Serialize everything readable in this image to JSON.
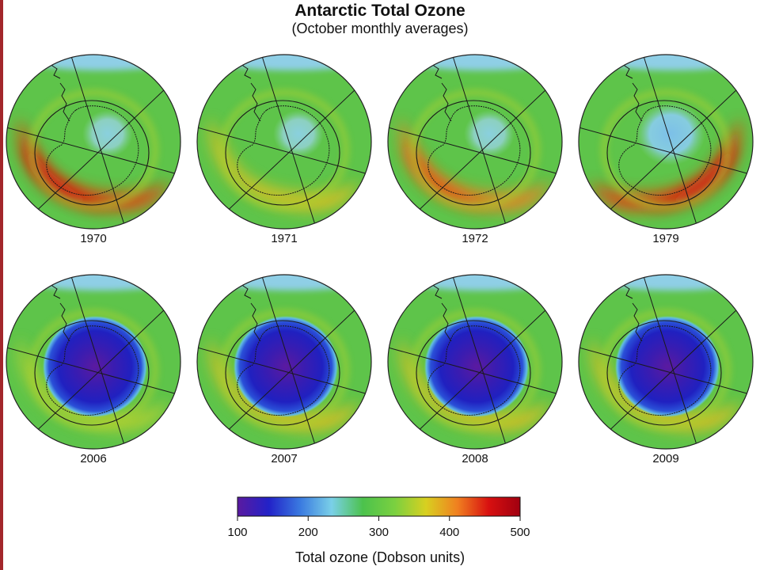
{
  "title": "Antarctic Total Ozone",
  "subtitle": "(October monthly averages)",
  "colors": {
    "frame_edge": "#a3262b",
    "ocean": "#8fcfe6",
    "background": "#ffffff"
  },
  "maps": [
    {
      "year": "1970",
      "hole_level": "none",
      "peak_ring_level": "high"
    },
    {
      "year": "1971",
      "hole_level": "none",
      "peak_ring_level": "moderate"
    },
    {
      "year": "1972",
      "hole_level": "none",
      "peak_ring_level": "moderate-high"
    },
    {
      "year": "1979",
      "hole_level": "slight",
      "peak_ring_level": "high"
    },
    {
      "year": "2006",
      "hole_level": "severe",
      "peak_ring_level": "low"
    },
    {
      "year": "2007",
      "hole_level": "severe",
      "peak_ring_level": "moderate"
    },
    {
      "year": "2008",
      "hole_level": "severe",
      "peak_ring_level": "moderate"
    },
    {
      "year": "2009",
      "hole_level": "severe",
      "peak_ring_level": "moderate"
    }
  ],
  "legend": {
    "title": "Total ozone (Dobson units)",
    "min": 100,
    "max": 500,
    "ticks": [
      "100",
      "200",
      "300",
      "400",
      "500"
    ],
    "colors": [
      "#5a1aa0",
      "#2222c8",
      "#3a7ae0",
      "#7ad0e8",
      "#4cc24c",
      "#7ad040",
      "#d8d020",
      "#f08020",
      "#d81010",
      "#a00010"
    ]
  }
}
